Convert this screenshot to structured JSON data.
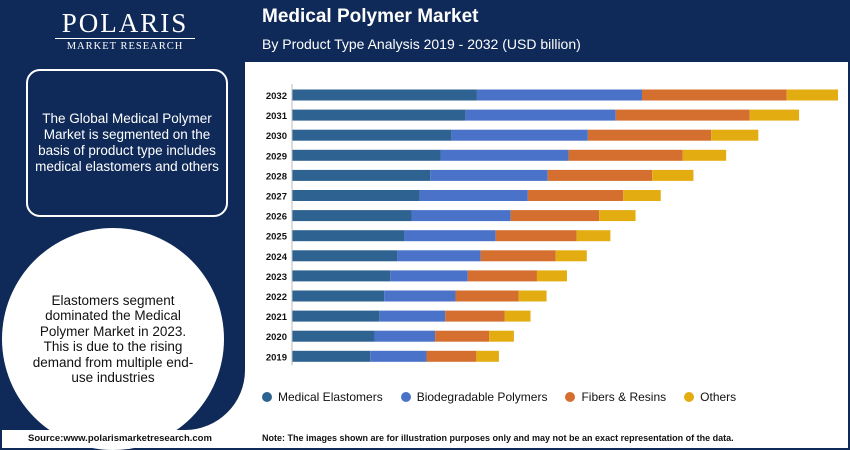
{
  "logo": {
    "name": "POLARIS",
    "sub": "MARKET RESEARCH"
  },
  "header": {
    "title": "Medical Polymer Market",
    "subtitle": "By Product Type Analysis 2019 - 2032 (USD billion)"
  },
  "left_panel": {
    "box_text": "The Global Medical Polymer Market is segmented on the basis of product type includes medical elastomers and others",
    "circle_text": "Elastomers segment dominated the Medical Polymer Market in 2023. This is due to the rising demand from multiple end-use industries"
  },
  "footer": {
    "source": "Source:www.polarismarketresearch.com",
    "note": "Note: The images shown are for illustration purposes only and may not be an exact representation of the data."
  },
  "colors": {
    "navy": "#0f2a58",
    "elastomers": "#2e6291",
    "biodegradable": "#4a72c8",
    "fibers": "#d56f2f",
    "others": "#e3ad12"
  },
  "chart_data": {
    "type": "bar",
    "orientation": "horizontal",
    "stacked": true,
    "title": "Medical Polymer Market",
    "subtitle": "By Product Type Analysis 2019 - 2032 (USD billion)",
    "grid": false,
    "legend_position": "bottom",
    "categories": [
      "2032",
      "2031",
      "2030",
      "2029",
      "2028",
      "2027",
      "2026",
      "2025",
      "2024",
      "2023",
      "2022",
      "2021",
      "2020",
      "2019"
    ],
    "series": [
      {
        "name": "Medical Elastomers",
        "color": "#2e6291",
        "values": [
          34.5,
          32.4,
          29.8,
          27.7,
          25.8,
          23.8,
          22.3,
          20.9,
          19.6,
          18.3,
          17.2,
          16.3,
          15.4,
          14.6
        ]
      },
      {
        "name": "Biodegradable Polymers",
        "color": "#4a72c8",
        "values": [
          30.8,
          28.0,
          25.4,
          23.9,
          21.9,
          20.2,
          18.5,
          17.1,
          15.6,
          14.5,
          13.3,
          12.3,
          11.3,
          10.5
        ]
      },
      {
        "name": "Fibers & Resins",
        "color": "#d56f2f",
        "values": [
          27.0,
          25.0,
          23.0,
          21.3,
          19.5,
          17.8,
          16.5,
          15.1,
          14.0,
          12.9,
          11.8,
          11.1,
          10.1,
          9.3
        ]
      },
      {
        "name": "Others",
        "color": "#e3ad12",
        "values": [
          10.0,
          9.2,
          8.8,
          8.1,
          7.7,
          7.0,
          6.8,
          6.3,
          5.8,
          5.6,
          5.2,
          4.8,
          4.6,
          4.2
        ]
      }
    ]
  }
}
